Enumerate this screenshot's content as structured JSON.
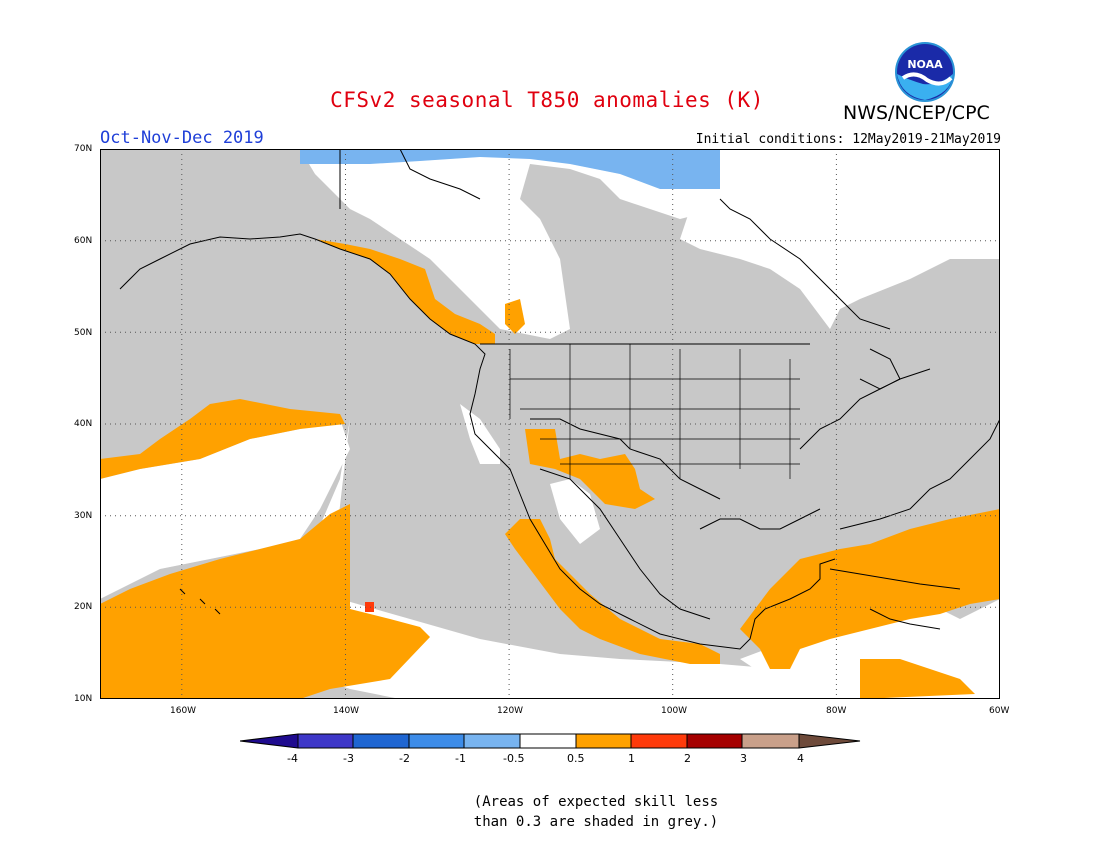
{
  "header": {
    "title": "CFSv2 seasonal T850 anomalies (K)",
    "agency": "NWS/NCEP/CPC",
    "logo_text": "NOAA",
    "season": "Oct-Nov-Dec 2019",
    "initial_conditions": "Initial conditions: 12May2019-21May2019"
  },
  "map": {
    "lon_range": [
      -170,
      -60
    ],
    "lat_range": [
      10,
      70
    ],
    "lat_ticks": [
      "10N",
      "20N",
      "30N",
      "40N",
      "50N",
      "60N",
      "70N"
    ],
    "lon_ticks": [
      "160W",
      "140W",
      "120W",
      "100W",
      "80W",
      "60W"
    ],
    "grid": "dotted",
    "colors": {
      "skill_grey": "#c8c8c8",
      "neutral": "#ffffff",
      "warm_0_5_1": "#ffa100",
      "warm_1_2": "#ff3a0a",
      "cool_minus1_minus0_5": "#78b4f0"
    },
    "features": [
      {
        "name": "Western Canada coastal warm anomaly",
        "category": "0.5 to 1"
      },
      {
        "name": "US Southwest warm anomaly",
        "category": "0.5 to 1"
      },
      {
        "name": "Mexico warm anomaly",
        "category": "0.5 to 1"
      },
      {
        "name": "Central Pacific subtropical warm anomaly",
        "category": "0.5 to 1"
      },
      {
        "name": "Caribbean and Gulf warm anomaly",
        "category": "0.5 to 1"
      },
      {
        "name": "Arctic Canada cool anomaly",
        "category": "-1 to -0.5"
      },
      {
        "name": "Small warm spot near Hawaii",
        "category": "1 to 2"
      }
    ]
  },
  "colorbar": {
    "labels": [
      "-4",
      "-3",
      "-2",
      "-1",
      "-0.5",
      "0.5",
      "1",
      "2",
      "3",
      "4"
    ],
    "colors": [
      "#1f0b8f",
      "#3e37c8",
      "#1f66d2",
      "#3d8ce8",
      "#78b4f0",
      "#ffffff",
      "#ffa100",
      "#ff3a0a",
      "#a50000",
      "#c9a08a",
      "#6e4a3a"
    ]
  },
  "note": {
    "line1": "(Areas of expected skill less",
    "line2": "than 0.3 are shaded in grey.)"
  }
}
